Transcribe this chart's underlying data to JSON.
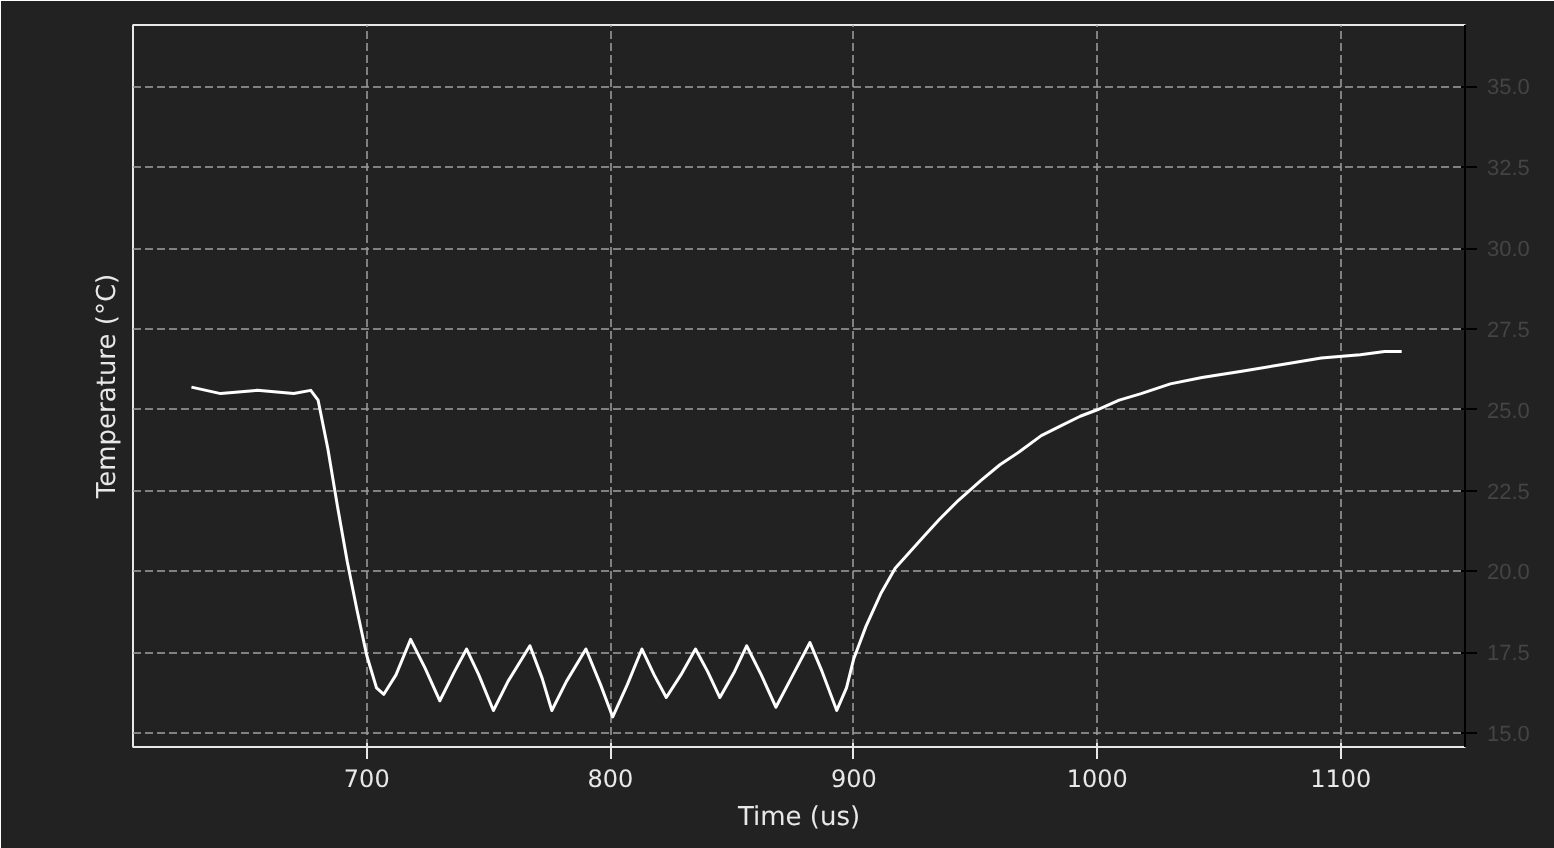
{
  "chart_data": {
    "type": "line",
    "xlabel": "Time (us)",
    "ylabel": "Temperature (°C)",
    "x": [
      628,
      640,
      655,
      670,
      677,
      680,
      684,
      688,
      692,
      696,
      700,
      704,
      707,
      712,
      718,
      724,
      730,
      736,
      741,
      746,
      752,
      758,
      767,
      772,
      776,
      782,
      790,
      796,
      801,
      807,
      813,
      818,
      823,
      829,
      835,
      840,
      845,
      851,
      856,
      862,
      868,
      875,
      882,
      887,
      893,
      897,
      900,
      905,
      911,
      917,
      923,
      929,
      935,
      943,
      952,
      960,
      968,
      977,
      985,
      993,
      1000,
      1009,
      1018,
      1030,
      1043,
      1060,
      1076,
      1092,
      1108,
      1118,
      1125
    ],
    "series": [
      {
        "color": "#ffffff",
        "values": [
          25.7,
          25.5,
          25.6,
          25.5,
          25.6,
          25.3,
          23.8,
          22.0,
          20.3,
          18.8,
          17.4,
          16.4,
          16.2,
          16.8,
          17.9,
          17.0,
          16.0,
          16.9,
          17.6,
          16.8,
          15.7,
          16.6,
          17.7,
          16.7,
          15.7,
          16.6,
          17.6,
          16.5,
          15.5,
          16.5,
          17.6,
          16.8,
          16.1,
          16.8,
          17.6,
          16.9,
          16.1,
          16.9,
          17.7,
          16.8,
          15.8,
          16.8,
          17.8,
          16.9,
          15.7,
          16.4,
          17.3,
          18.3,
          19.3,
          20.1,
          20.6,
          21.1,
          21.6,
          22.2,
          22.8,
          23.3,
          23.7,
          24.2,
          24.5,
          24.8,
          25.0,
          25.3,
          25.5,
          25.8,
          26.0,
          26.2,
          26.4,
          26.6,
          26.7,
          26.8,
          26.8
        ]
      }
    ],
    "xlim": [
      604,
      1151
    ],
    "ylim": [
      14.57,
      36.9
    ],
    "xticks": [
      700,
      800,
      900,
      1000,
      1100
    ],
    "yticks": [
      {
        "value": 15,
        "label": "15.0"
      },
      {
        "value": 17.5,
        "label": "17.5"
      },
      {
        "value": 20,
        "label": "20.0"
      },
      {
        "value": 22.5,
        "label": "22.5"
      },
      {
        "value": 25,
        "label": "25.0"
      },
      {
        "value": 27.5,
        "label": "27.5"
      },
      {
        "value": 30,
        "label": "30.0"
      },
      {
        "value": 32.5,
        "label": "32.5"
      },
      {
        "value": 35,
        "label": "35.0"
      }
    ],
    "grid": true,
    "line_style": "solid"
  }
}
